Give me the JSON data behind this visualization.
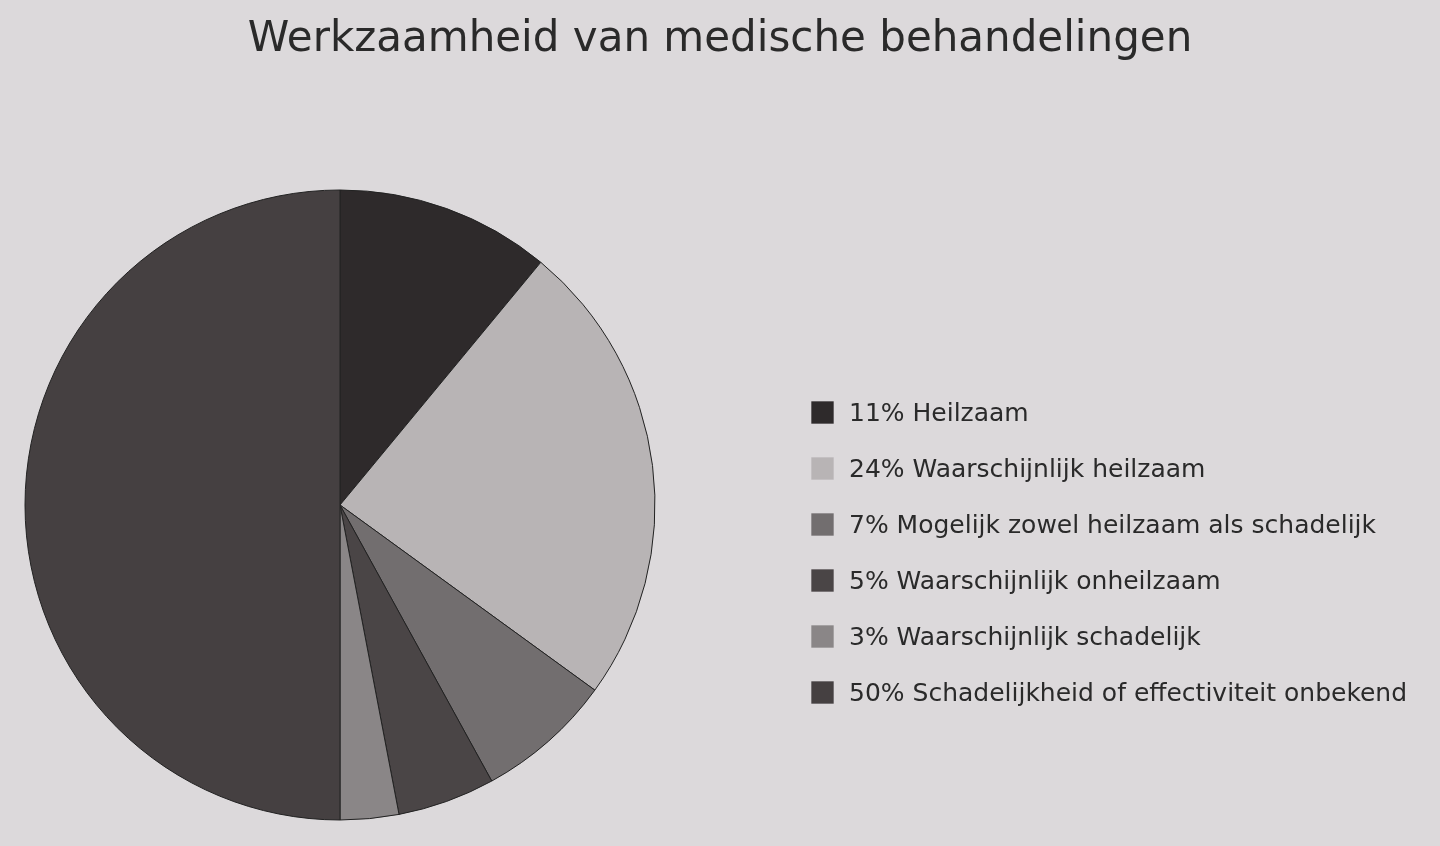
{
  "chart_data": {
    "type": "pie",
    "title": "Werkzaamheid van medische behandelingen",
    "categories": [
      "Heilzaam",
      "Waarschijnlijk heilzaam",
      "Mogelijk zowel heilzaam als schadelijk",
      "Waarschijnlijk onheilzaam",
      "Waarschijnlijk schadelijk",
      "Schadelijkheid of effectiviteit onbekend"
    ],
    "values": [
      11,
      24,
      7,
      5,
      3,
      50
    ],
    "value_labels": [
      "11%",
      "24%",
      "7%",
      "5%",
      "3%",
      "50%"
    ],
    "colors": [
      "#2e2a2b",
      "#b8b4b5",
      "#726e6f",
      "#4a4546",
      "#8a8687",
      "#454041"
    ],
    "legend": "right"
  }
}
